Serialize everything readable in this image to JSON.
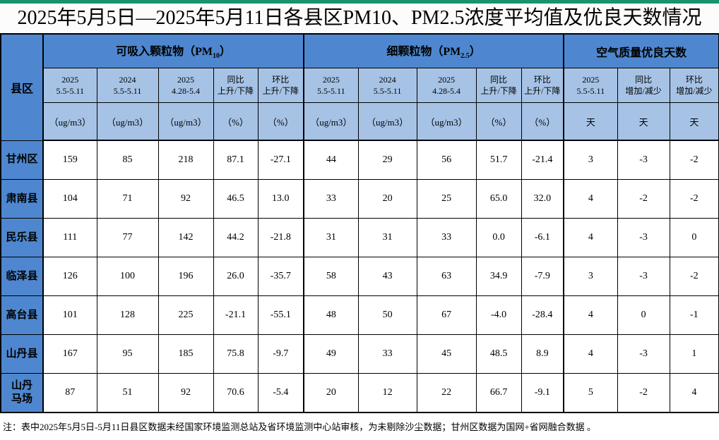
{
  "title": "2025年5月5日—2025年5月11日各县区PM10、PM2.5浓度平均值及优良天数情况",
  "colors": {
    "accent_green": "#17936d",
    "header_blue": "#4e87cf",
    "subheader_blue": "#a6c3e6",
    "border_black": "#000000"
  },
  "table": {
    "corner_label": "县区",
    "groups": [
      {
        "label": {
          "prefix": "可吸入颗粒物（PM",
          "sub": "10",
          "suffix": "）"
        },
        "columns": [
          {
            "header": "2025\n5.5-5.11",
            "unit": "（ug/m3）"
          },
          {
            "header": "2024\n5.5-5.11",
            "unit": "（ug/m3）"
          },
          {
            "header": "2025\n4.28-5.4",
            "unit": "（ug/m3）"
          },
          {
            "header": "同比\n上升/下降",
            "unit": "（%）"
          },
          {
            "header": "环比\n上升/下降",
            "unit": "（%）"
          }
        ]
      },
      {
        "label": {
          "prefix": "细颗粒物（PM",
          "sub": "2.5",
          "suffix": "）"
        },
        "columns": [
          {
            "header": "2025\n5.5-5.11",
            "unit": "（ug/m3）"
          },
          {
            "header": "2024\n5.5-5.11",
            "unit": "（ug/m3）"
          },
          {
            "header": "2025\n4.28-5.4",
            "unit": "（ug/m3）"
          },
          {
            "header": "同比\n上升/下降",
            "unit": "（%）"
          },
          {
            "header": "环比\n上升/下降",
            "unit": "（%）"
          }
        ]
      },
      {
        "label": {
          "prefix": "空气质量优良天数",
          "sub": "",
          "suffix": ""
        },
        "columns": [
          {
            "header": "2025\n5.5-5.11",
            "unit": "天"
          },
          {
            "header": "同比\n增加/减少",
            "unit": "天"
          },
          {
            "header": "环比\n增加/减少",
            "unit": "天"
          }
        ]
      }
    ],
    "rows": [
      {
        "name": "甘州区",
        "values": [
          "159",
          "85",
          "218",
          "87.1",
          "-27.1",
          "44",
          "29",
          "56",
          "51.7",
          "-21.4",
          "3",
          "-3",
          "-2"
        ]
      },
      {
        "name": "肃南县",
        "values": [
          "104",
          "71",
          "92",
          "46.5",
          "13.0",
          "33",
          "20",
          "25",
          "65.0",
          "32.0",
          "4",
          "-2",
          "-2"
        ]
      },
      {
        "name": "民乐县",
        "values": [
          "111",
          "77",
          "142",
          "44.2",
          "-21.8",
          "31",
          "31",
          "33",
          "0.0",
          "-6.1",
          "4",
          "-3",
          "0"
        ]
      },
      {
        "name": "临泽县",
        "values": [
          "126",
          "100",
          "196",
          "26.0",
          "-35.7",
          "58",
          "43",
          "63",
          "34.9",
          "-7.9",
          "3",
          "-3",
          "-2"
        ]
      },
      {
        "name": "高台县",
        "values": [
          "101",
          "128",
          "225",
          "-21.1",
          "-55.1",
          "48",
          "50",
          "67",
          "-4.0",
          "-28.4",
          "4",
          "0",
          "-1"
        ]
      },
      {
        "name": "山丹县",
        "values": [
          "167",
          "95",
          "185",
          "75.8",
          "-9.7",
          "49",
          "33",
          "45",
          "48.5",
          "8.9",
          "4",
          "-3",
          "1"
        ]
      },
      {
        "name": "山丹\n马场",
        "values": [
          "87",
          "51",
          "92",
          "70.6",
          "-5.4",
          "20",
          "12",
          "22",
          "66.7",
          "-9.1",
          "5",
          "-2",
          "4"
        ]
      }
    ]
  },
  "note": "注：表中2025年5月5日-5月11日县区数据未经国家环境监测总站及省环境监测中心站审核，为未剔除沙尘数据；甘州区数据为国网+省网融合数据 。"
}
